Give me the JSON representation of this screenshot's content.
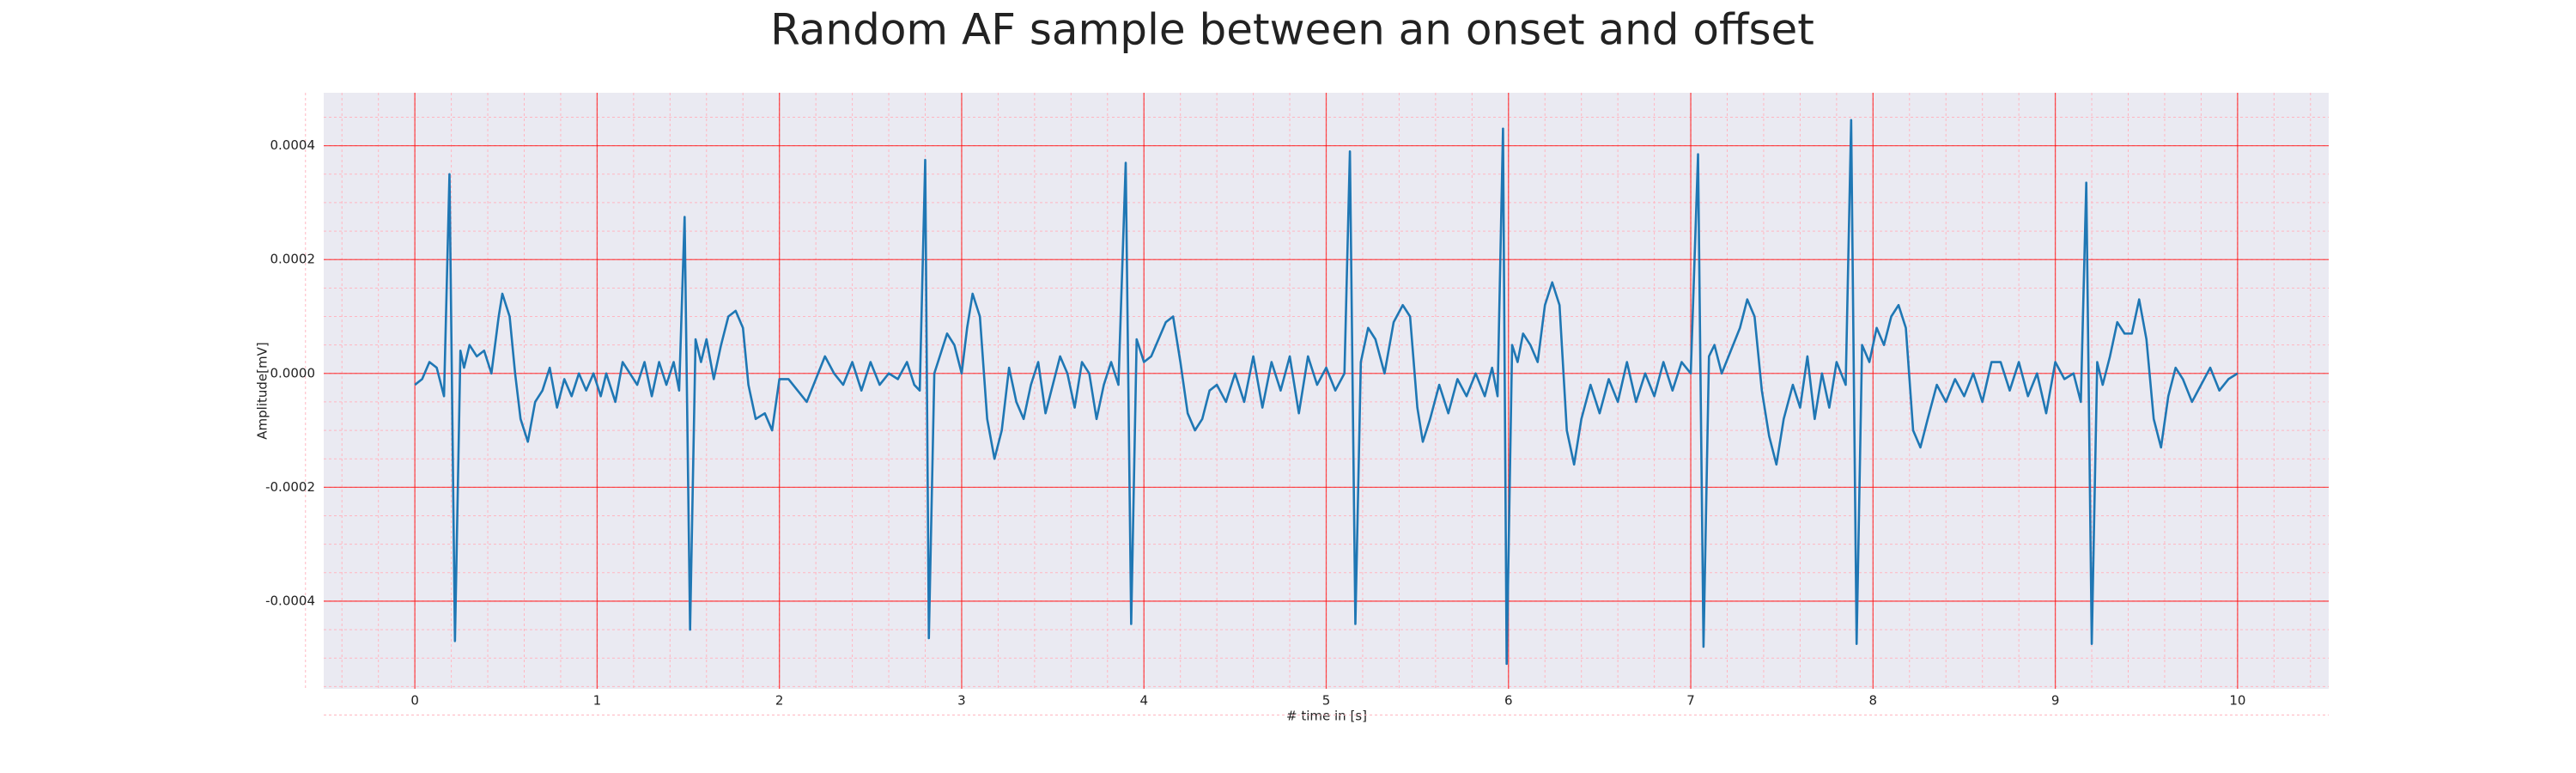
{
  "chart_data": {
    "type": "line",
    "title": "Random AF sample between an onset and offset",
    "xlabel": "# time in [s]",
    "ylabel": "Amplitude[mV]",
    "xlim": [
      -0.5,
      10.5
    ],
    "xticks": [
      0,
      1,
      2,
      3,
      4,
      5,
      6,
      7,
      8,
      9,
      10
    ],
    "ylim": [
      -0.000554,
      0.000493
    ],
    "yticks": [
      -0.0004,
      -0.0002,
      {
        "value": 0,
        "label": "0.0000"
      },
      0.0002,
      0.0004
    ],
    "grid": true,
    "minor_grid": true,
    "series": [
      {
        "color": "#1f77b4",
        "x": [
          0,
          0.04,
          0.08,
          0.12,
          0.16,
          0.19,
          0.22,
          0.25,
          0.27,
          0.3,
          0.34,
          0.38,
          0.42,
          0.46,
          0.48,
          0.52,
          0.55,
          0.58,
          0.62,
          0.66,
          0.7,
          0.74,
          0.78,
          0.82,
          0.86,
          0.9,
          0.94,
          0.98,
          1.02,
          1.05,
          1.1,
          1.14,
          1.18,
          1.22,
          1.26,
          1.3,
          1.34,
          1.38,
          1.42,
          1.45,
          1.48,
          1.51,
          1.54,
          1.57,
          1.6,
          1.64,
          1.68,
          1.72,
          1.76,
          1.8,
          1.83,
          1.87,
          1.92,
          1.96,
          2.0,
          2.05,
          2.1,
          2.15,
          2.2,
          2.25,
          2.3,
          2.35,
          2.4,
          2.45,
          2.5,
          2.55,
          2.6,
          2.65,
          2.7,
          2.74,
          2.77,
          2.8,
          2.82,
          2.85,
          2.88,
          2.92,
          2.96,
          3.0,
          3.03,
          3.06,
          3.1,
          3.14,
          3.18,
          3.22,
          3.26,
          3.3,
          3.34,
          3.38,
          3.42,
          3.46,
          3.5,
          3.54,
          3.58,
          3.62,
          3.66,
          3.7,
          3.74,
          3.78,
          3.82,
          3.86,
          3.9,
          3.93,
          3.96,
          4.0,
          4.04,
          4.08,
          4.12,
          4.16,
          4.2,
          4.24,
          4.28,
          4.32,
          4.36,
          4.4,
          4.45,
          4.5,
          4.55,
          4.6,
          4.65,
          4.7,
          4.75,
          4.8,
          4.85,
          4.9,
          4.95,
          5.0,
          5.05,
          5.1,
          5.13,
          5.16,
          5.19,
          5.23,
          5.27,
          5.32,
          5.37,
          5.42,
          5.46,
          5.5,
          5.53,
          5.57,
          5.62,
          5.67,
          5.72,
          5.77,
          5.82,
          5.87,
          5.91,
          5.94,
          5.97,
          5.99,
          6.02,
          6.05,
          6.08,
          6.12,
          6.16,
          6.2,
          6.24,
          6.28,
          6.32,
          6.36,
          6.4,
          6.45,
          6.5,
          6.55,
          6.6,
          6.65,
          6.7,
          6.75,
          6.8,
          6.85,
          6.9,
          6.95,
          7.0,
          7.04,
          7.07,
          7.1,
          7.13,
          7.17,
          7.22,
          7.27,
          7.31,
          7.35,
          7.39,
          7.43,
          7.47,
          7.51,
          7.56,
          7.6,
          7.64,
          7.68,
          7.72,
          7.76,
          7.8,
          7.85,
          7.88,
          7.91,
          7.94,
          7.98,
          8.02,
          8.06,
          8.1,
          8.14,
          8.18,
          8.22,
          8.26,
          8.3,
          8.35,
          8.4,
          8.45,
          8.5,
          8.55,
          8.6,
          8.65,
          8.7,
          8.75,
          8.8,
          8.85,
          8.9,
          8.95,
          9.0,
          9.05,
          9.1,
          9.14,
          9.17,
          9.2,
          9.23,
          9.26,
          9.3,
          9.34,
          9.38,
          9.42,
          9.46,
          9.5,
          9.54,
          9.58,
          9.62,
          9.66,
          9.7,
          9.75,
          9.8,
          9.85,
          9.9,
          9.95,
          10.0
        ],
        "values": [
          -2e-05,
          -1e-05,
          2e-05,
          1e-05,
          -4e-05,
          0.00035,
          -0.00047,
          4e-05,
          1e-05,
          5e-05,
          3e-05,
          4e-05,
          0,
          0.0001,
          0.00014,
          0.0001,
          0,
          -8e-05,
          -0.00012,
          -5e-05,
          -3e-05,
          1e-05,
          -6e-05,
          -1e-05,
          -4e-05,
          0,
          -3e-05,
          0,
          -4e-05,
          0,
          -5e-05,
          2e-05,
          0,
          -2e-05,
          2e-05,
          -4e-05,
          2e-05,
          -2e-05,
          2e-05,
          -3e-05,
          0.000275,
          -0.00045,
          6e-05,
          2e-05,
          6e-05,
          -1e-05,
          5e-05,
          0.0001,
          0.00011,
          8e-05,
          -2e-05,
          -8e-05,
          -7e-05,
          -0.0001,
          -1e-05,
          -1e-05,
          -3e-05,
          -5e-05,
          -1e-05,
          3e-05,
          0,
          -2e-05,
          2e-05,
          -3e-05,
          2e-05,
          -2e-05,
          0,
          -1e-05,
          2e-05,
          -2e-05,
          -3e-05,
          0.000375,
          -0.000465,
          0,
          3e-05,
          7e-05,
          5e-05,
          0,
          8e-05,
          0.00014,
          0.0001,
          -8e-05,
          -0.00015,
          -0.0001,
          1e-05,
          -5e-05,
          -8e-05,
          -2e-05,
          2e-05,
          -7e-05,
          -2e-05,
          3e-05,
          0,
          -6e-05,
          2e-05,
          0,
          -8e-05,
          -2e-05,
          2e-05,
          -2e-05,
          0.00037,
          -0.00044,
          6e-05,
          2e-05,
          3e-05,
          6e-05,
          9e-05,
          0.0001,
          2e-05,
          -7e-05,
          -0.0001,
          -8e-05,
          -3e-05,
          -2e-05,
          -5e-05,
          0,
          -5e-05,
          3e-05,
          -6e-05,
          2e-05,
          -3e-05,
          3e-05,
          -7e-05,
          3e-05,
          -2e-05,
          1e-05,
          -3e-05,
          0,
          0.00039,
          -0.00044,
          2e-05,
          8e-05,
          6e-05,
          0,
          9e-05,
          0.00012,
          0.0001,
          -6e-05,
          -0.00012,
          -8e-05,
          -2e-05,
          -7e-05,
          -1e-05,
          -4e-05,
          0,
          -4e-05,
          1e-05,
          -4e-05,
          0.00043,
          -0.00051,
          5e-05,
          2e-05,
          7e-05,
          5e-05,
          2e-05,
          0.00012,
          0.00016,
          0.00012,
          -0.0001,
          -0.00016,
          -8e-05,
          -2e-05,
          -7e-05,
          -1e-05,
          -5e-05,
          2e-05,
          -5e-05,
          0,
          -4e-05,
          2e-05,
          -3e-05,
          2e-05,
          0,
          0.000385,
          -0.00048,
          3e-05,
          5e-05,
          0,
          4e-05,
          8e-05,
          0.00013,
          0.0001,
          -3e-05,
          -0.00011,
          -0.00016,
          -8e-05,
          -2e-05,
          -6e-05,
          3e-05,
          -8e-05,
          0,
          -6e-05,
          2e-05,
          -2e-05,
          0.000445,
          -0.000475,
          5e-05,
          2e-05,
          8e-05,
          5e-05,
          0.0001,
          0.00012,
          8e-05,
          -0.0001,
          -0.00013,
          -8e-05,
          -2e-05,
          -5e-05,
          -1e-05,
          -4e-05,
          0,
          -5e-05,
          2e-05,
          2e-05,
          -3e-05,
          2e-05,
          -4e-05,
          0,
          -7e-05,
          2e-05,
          -1e-05,
          0,
          -5e-05,
          0.000335,
          -0.000475,
          2e-05,
          -2e-05,
          3e-05,
          9e-05,
          7e-05,
          7e-05,
          0.00013,
          6e-05,
          -8e-05,
          -0.00013,
          -4e-05,
          1e-05,
          -1e-05,
          -5e-05,
          -2e-05,
          1e-05,
          -3e-05,
          -1e-05,
          0
        ]
      }
    ]
  }
}
